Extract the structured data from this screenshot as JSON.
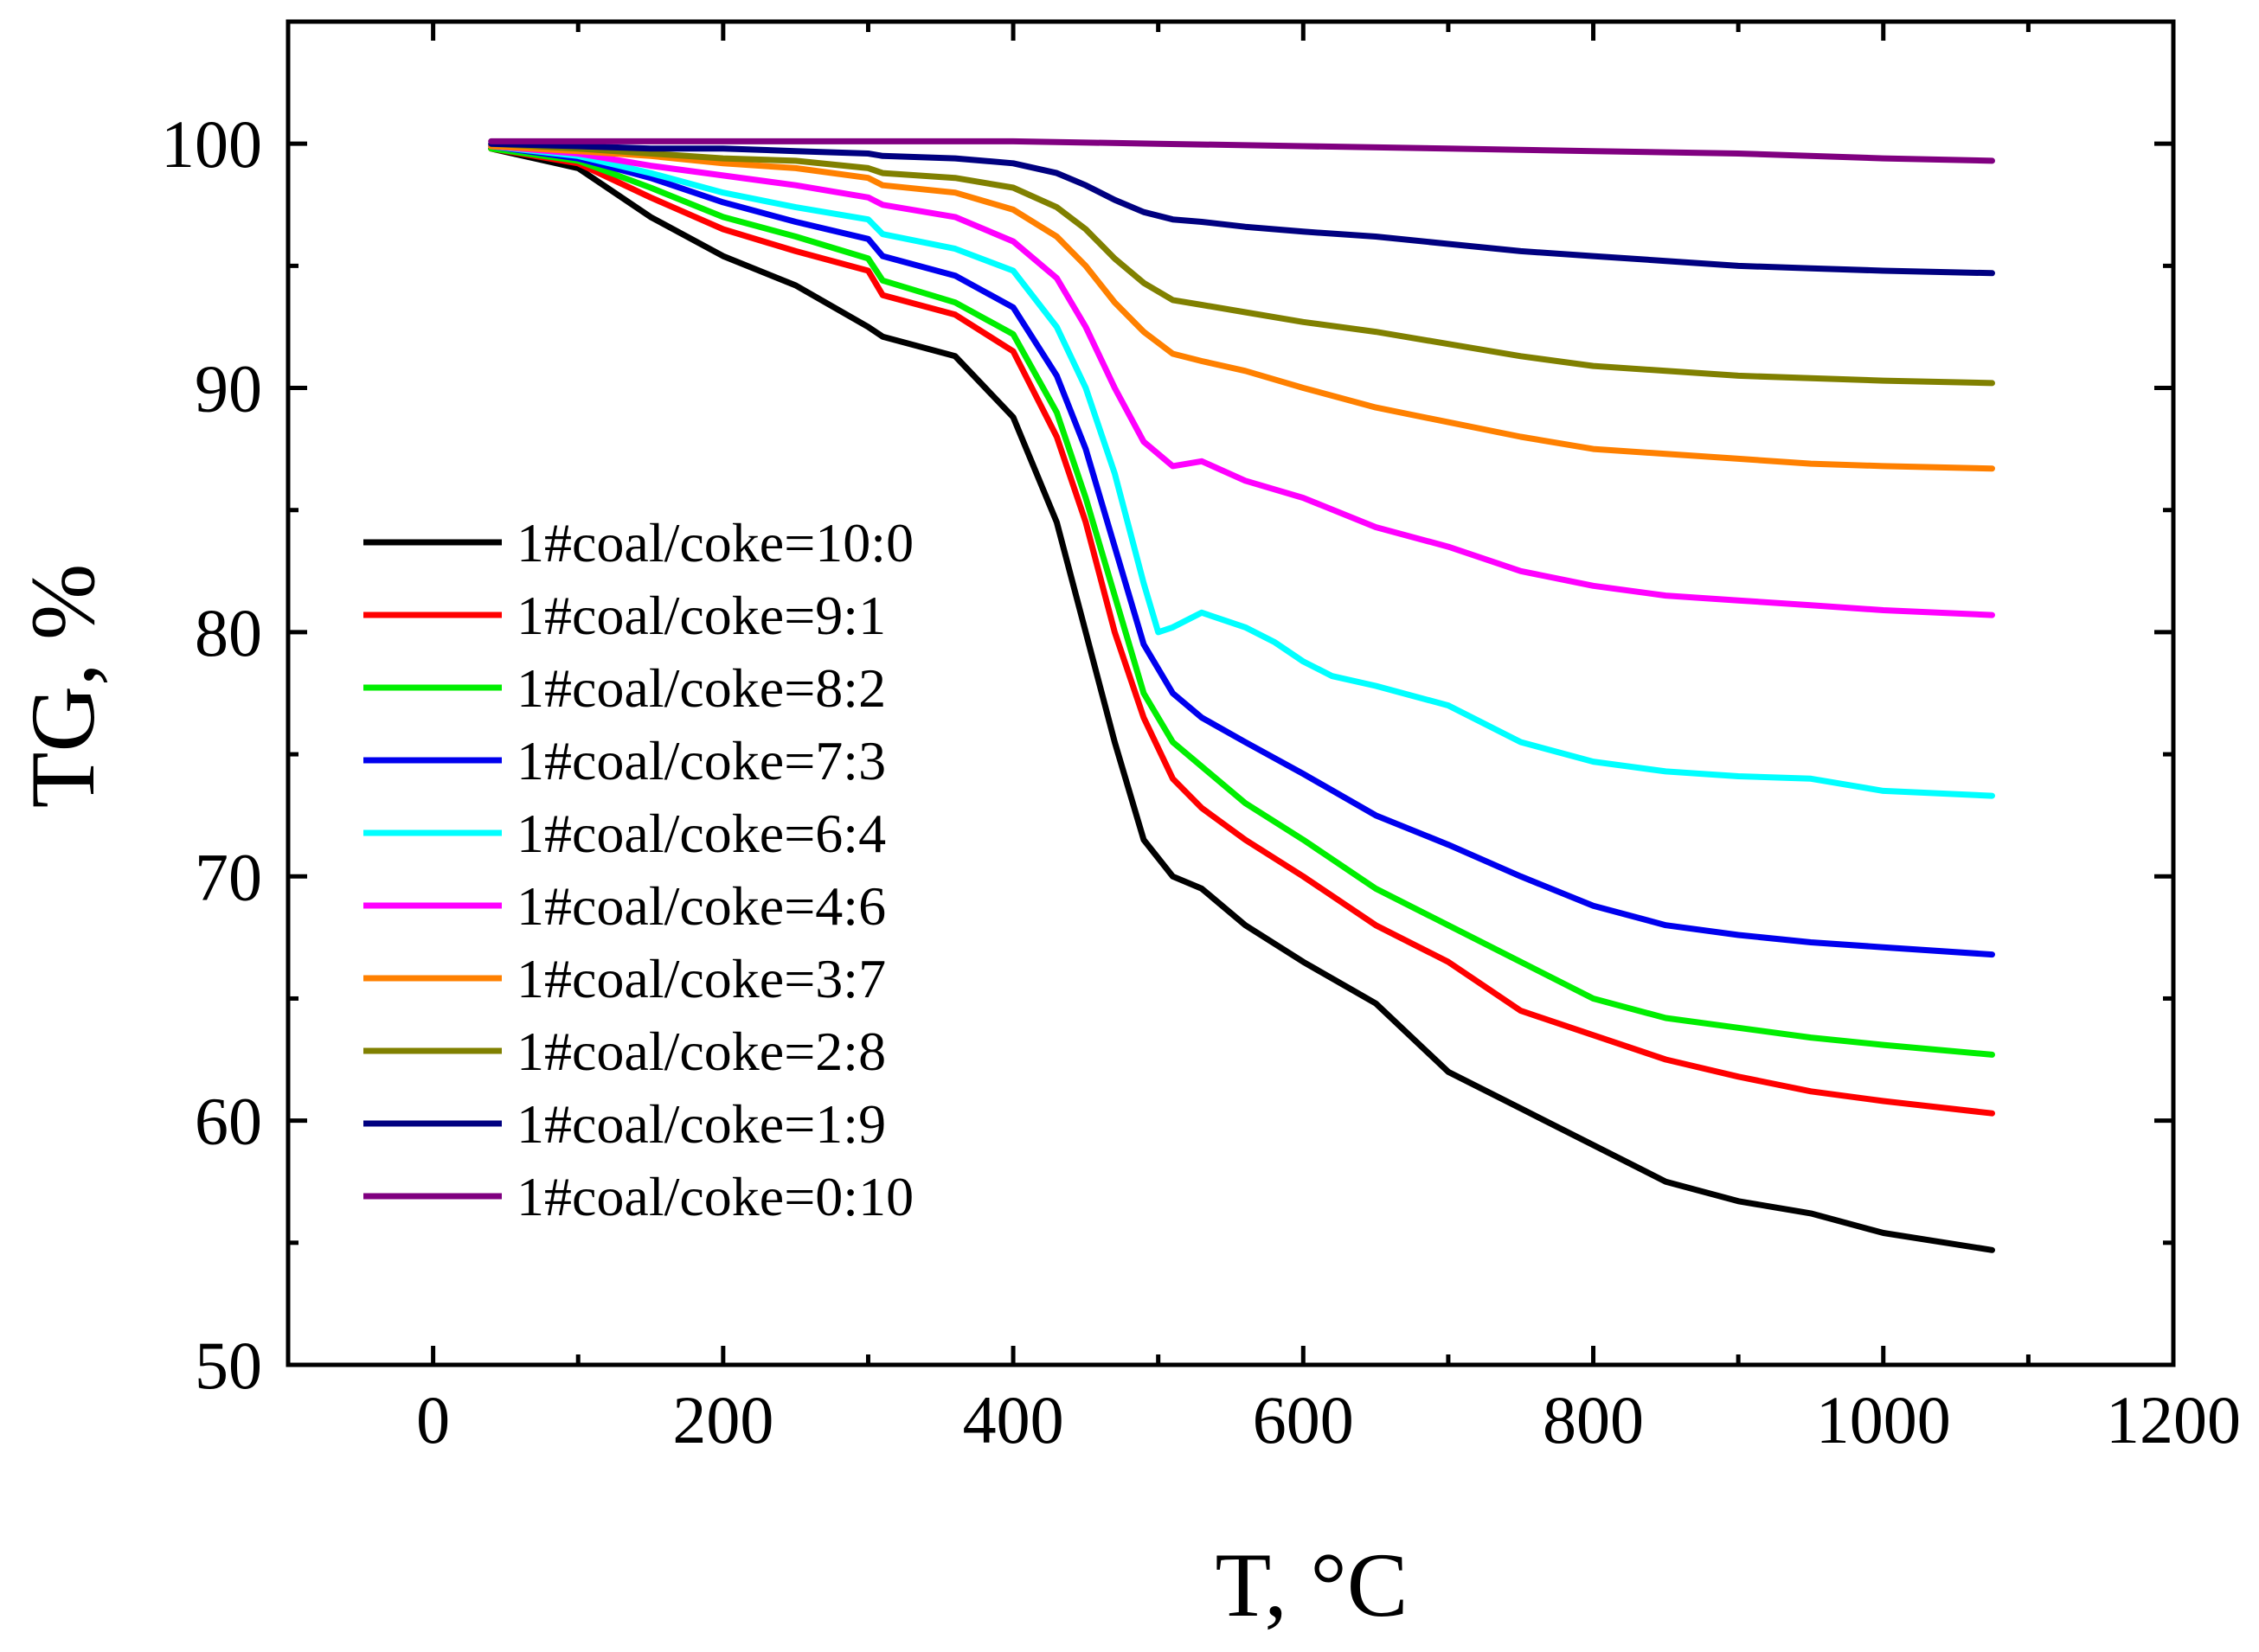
{
  "chart_data": {
    "type": "line",
    "xlabel": "T, °C",
    "ylabel": "TG, %",
    "xlim": [
      -100,
      1200
    ],
    "ylim": [
      50,
      105
    ],
    "xticks": [
      0,
      200,
      400,
      600,
      800,
      1000,
      1200
    ],
    "xtick_labels": [
      "0",
      "200",
      "400",
      "600",
      "800",
      "1000",
      "1200"
    ],
    "yticks": [
      50,
      60,
      70,
      80,
      90,
      100
    ],
    "ytick_labels": [
      "50",
      "60",
      "70",
      "80",
      "90",
      "100"
    ],
    "legend_position": "center-left",
    "series": [
      {
        "name": "1#coal/coke=10:0",
        "color": "#000000",
        "x": [
          40,
          100,
          150,
          200,
          250,
          300,
          310,
          360,
          400,
          430,
          450,
          470,
          490,
          510,
          530,
          560,
          600,
          650,
          700,
          750,
          800,
          850,
          900,
          950,
          1000,
          1075
        ],
        "y": [
          99.8,
          99.0,
          97.0,
          95.4,
          94.2,
          92.5,
          92.1,
          91.3,
          88.8,
          84.5,
          80.0,
          75.5,
          71.5,
          70.0,
          69.5,
          68.0,
          66.5,
          64.8,
          62.0,
          60.5,
          59.0,
          57.5,
          56.7,
          56.2,
          55.4,
          54.7
        ]
      },
      {
        "name": "1#coal/coke=9:1",
        "color": "#ff0000",
        "x": [
          40,
          100,
          150,
          200,
          250,
          300,
          310,
          360,
          400,
          430,
          450,
          470,
          490,
          510,
          530,
          560,
          600,
          650,
          700,
          750,
          800,
          850,
          900,
          950,
          1000,
          1075
        ],
        "y": [
          99.8,
          99.2,
          97.8,
          96.5,
          95.6,
          94.8,
          93.8,
          93.0,
          91.5,
          88.0,
          84.5,
          80.0,
          76.5,
          74.0,
          72.8,
          71.5,
          70.0,
          68.0,
          66.5,
          64.5,
          63.5,
          62.5,
          61.8,
          61.2,
          60.8,
          60.3
        ]
      },
      {
        "name": "1#coal/coke=8:2",
        "color": "#00ee00",
        "x": [
          40,
          100,
          150,
          200,
          250,
          300,
          310,
          360,
          400,
          430,
          450,
          470,
          490,
          510,
          530,
          560,
          600,
          650,
          700,
          750,
          800,
          850,
          900,
          950,
          1000,
          1075
        ],
        "y": [
          99.8,
          99.3,
          98.2,
          97.0,
          96.2,
          95.3,
          94.4,
          93.5,
          92.2,
          89.0,
          85.5,
          81.5,
          77.5,
          75.5,
          74.5,
          73.0,
          71.5,
          69.5,
          68.0,
          66.5,
          65.0,
          64.2,
          63.8,
          63.4,
          63.1,
          62.7
        ]
      },
      {
        "name": "1#coal/coke=7:3",
        "color": "#0000ee",
        "x": [
          40,
          100,
          150,
          200,
          250,
          300,
          310,
          360,
          400,
          430,
          450,
          470,
          490,
          510,
          530,
          560,
          600,
          650,
          700,
          750,
          800,
          850,
          900,
          950,
          1000,
          1075
        ],
        "y": [
          99.9,
          99.4,
          98.6,
          97.6,
          96.8,
          96.1,
          95.4,
          94.6,
          93.3,
          90.5,
          87.5,
          83.5,
          79.5,
          77.5,
          76.5,
          75.5,
          74.2,
          72.5,
          71.3,
          70.0,
          68.8,
          68.0,
          67.6,
          67.3,
          67.1,
          66.8
        ]
      },
      {
        "name": "1#coal/coke=6:4",
        "color": "#00ffff",
        "x": [
          40,
          100,
          150,
          200,
          250,
          300,
          310,
          360,
          400,
          430,
          450,
          470,
          490,
          500,
          510,
          530,
          545,
          560,
          580,
          600,
          620,
          650,
          700,
          750,
          800,
          850,
          900,
          950,
          1000,
          1075
        ],
        "y": [
          99.9,
          99.5,
          98.8,
          98.0,
          97.4,
          96.9,
          96.3,
          95.7,
          94.8,
          92.5,
          90.0,
          86.5,
          82.0,
          80.0,
          80.2,
          80.8,
          80.5,
          80.2,
          79.6,
          78.8,
          78.2,
          77.8,
          77.0,
          75.5,
          74.7,
          74.3,
          74.1,
          74.0,
          73.5,
          73.3
        ]
      },
      {
        "name": "1#coal/coke=4:6",
        "color": "#ff00ff",
        "x": [
          40,
          100,
          150,
          200,
          250,
          300,
          310,
          360,
          400,
          430,
          450,
          470,
          490,
          510,
          530,
          560,
          600,
          650,
          700,
          750,
          800,
          850,
          900,
          950,
          1000,
          1075
        ],
        "y": [
          99.9,
          99.6,
          99.1,
          98.7,
          98.3,
          97.8,
          97.5,
          97.0,
          96.0,
          94.5,
          92.5,
          90.0,
          87.8,
          86.8,
          87.0,
          86.2,
          85.5,
          84.3,
          83.5,
          82.5,
          81.9,
          81.5,
          81.3,
          81.1,
          80.9,
          80.7
        ]
      },
      {
        "name": "1#coal/coke=3:7",
        "color": "#ff8000",
        "x": [
          40,
          100,
          150,
          200,
          250,
          300,
          310,
          360,
          400,
          430,
          450,
          470,
          490,
          510,
          530,
          560,
          600,
          650,
          700,
          750,
          800,
          850,
          900,
          950,
          1000,
          1075
        ],
        "y": [
          99.9,
          99.7,
          99.5,
          99.2,
          99.0,
          98.6,
          98.3,
          98.0,
          97.3,
          96.2,
          95.0,
          93.5,
          92.3,
          91.4,
          91.1,
          90.7,
          90.0,
          89.2,
          88.6,
          88.0,
          87.5,
          87.3,
          87.1,
          86.9,
          86.8,
          86.7
        ]
      },
      {
        "name": "1#coal/coke=2:8",
        "color": "#808000",
        "x": [
          40,
          100,
          150,
          200,
          250,
          300,
          310,
          360,
          400,
          430,
          450,
          470,
          490,
          510,
          530,
          560,
          600,
          650,
          700,
          750,
          800,
          850,
          900,
          950,
          1000,
          1075
        ],
        "y": [
          100.0,
          99.8,
          99.6,
          99.4,
          99.3,
          99.0,
          98.8,
          98.6,
          98.2,
          97.4,
          96.5,
          95.3,
          94.3,
          93.6,
          93.4,
          93.1,
          92.7,
          92.3,
          91.8,
          91.3,
          90.9,
          90.7,
          90.5,
          90.4,
          90.3,
          90.2
        ]
      },
      {
        "name": "1#coal/coke=1:9",
        "color": "#000080",
        "x": [
          40,
          100,
          150,
          200,
          250,
          300,
          310,
          360,
          400,
          430,
          450,
          470,
          490,
          510,
          530,
          560,
          600,
          650,
          700,
          750,
          800,
          850,
          900,
          950,
          1000,
          1075
        ],
        "y": [
          100.0,
          99.9,
          99.8,
          99.8,
          99.7,
          99.6,
          99.5,
          99.4,
          99.2,
          98.8,
          98.3,
          97.7,
          97.2,
          96.9,
          96.8,
          96.6,
          96.4,
          96.2,
          95.9,
          95.6,
          95.4,
          95.2,
          95.0,
          94.9,
          94.8,
          94.7
        ]
      },
      {
        "name": "1#coal/coke=0:10",
        "color": "#800080",
        "x": [
          40,
          200,
          400,
          500,
          600,
          700,
          800,
          900,
          1000,
          1075
        ],
        "y": [
          100.1,
          100.1,
          100.1,
          100.0,
          99.9,
          99.8,
          99.7,
          99.6,
          99.4,
          99.3
        ]
      }
    ]
  }
}
